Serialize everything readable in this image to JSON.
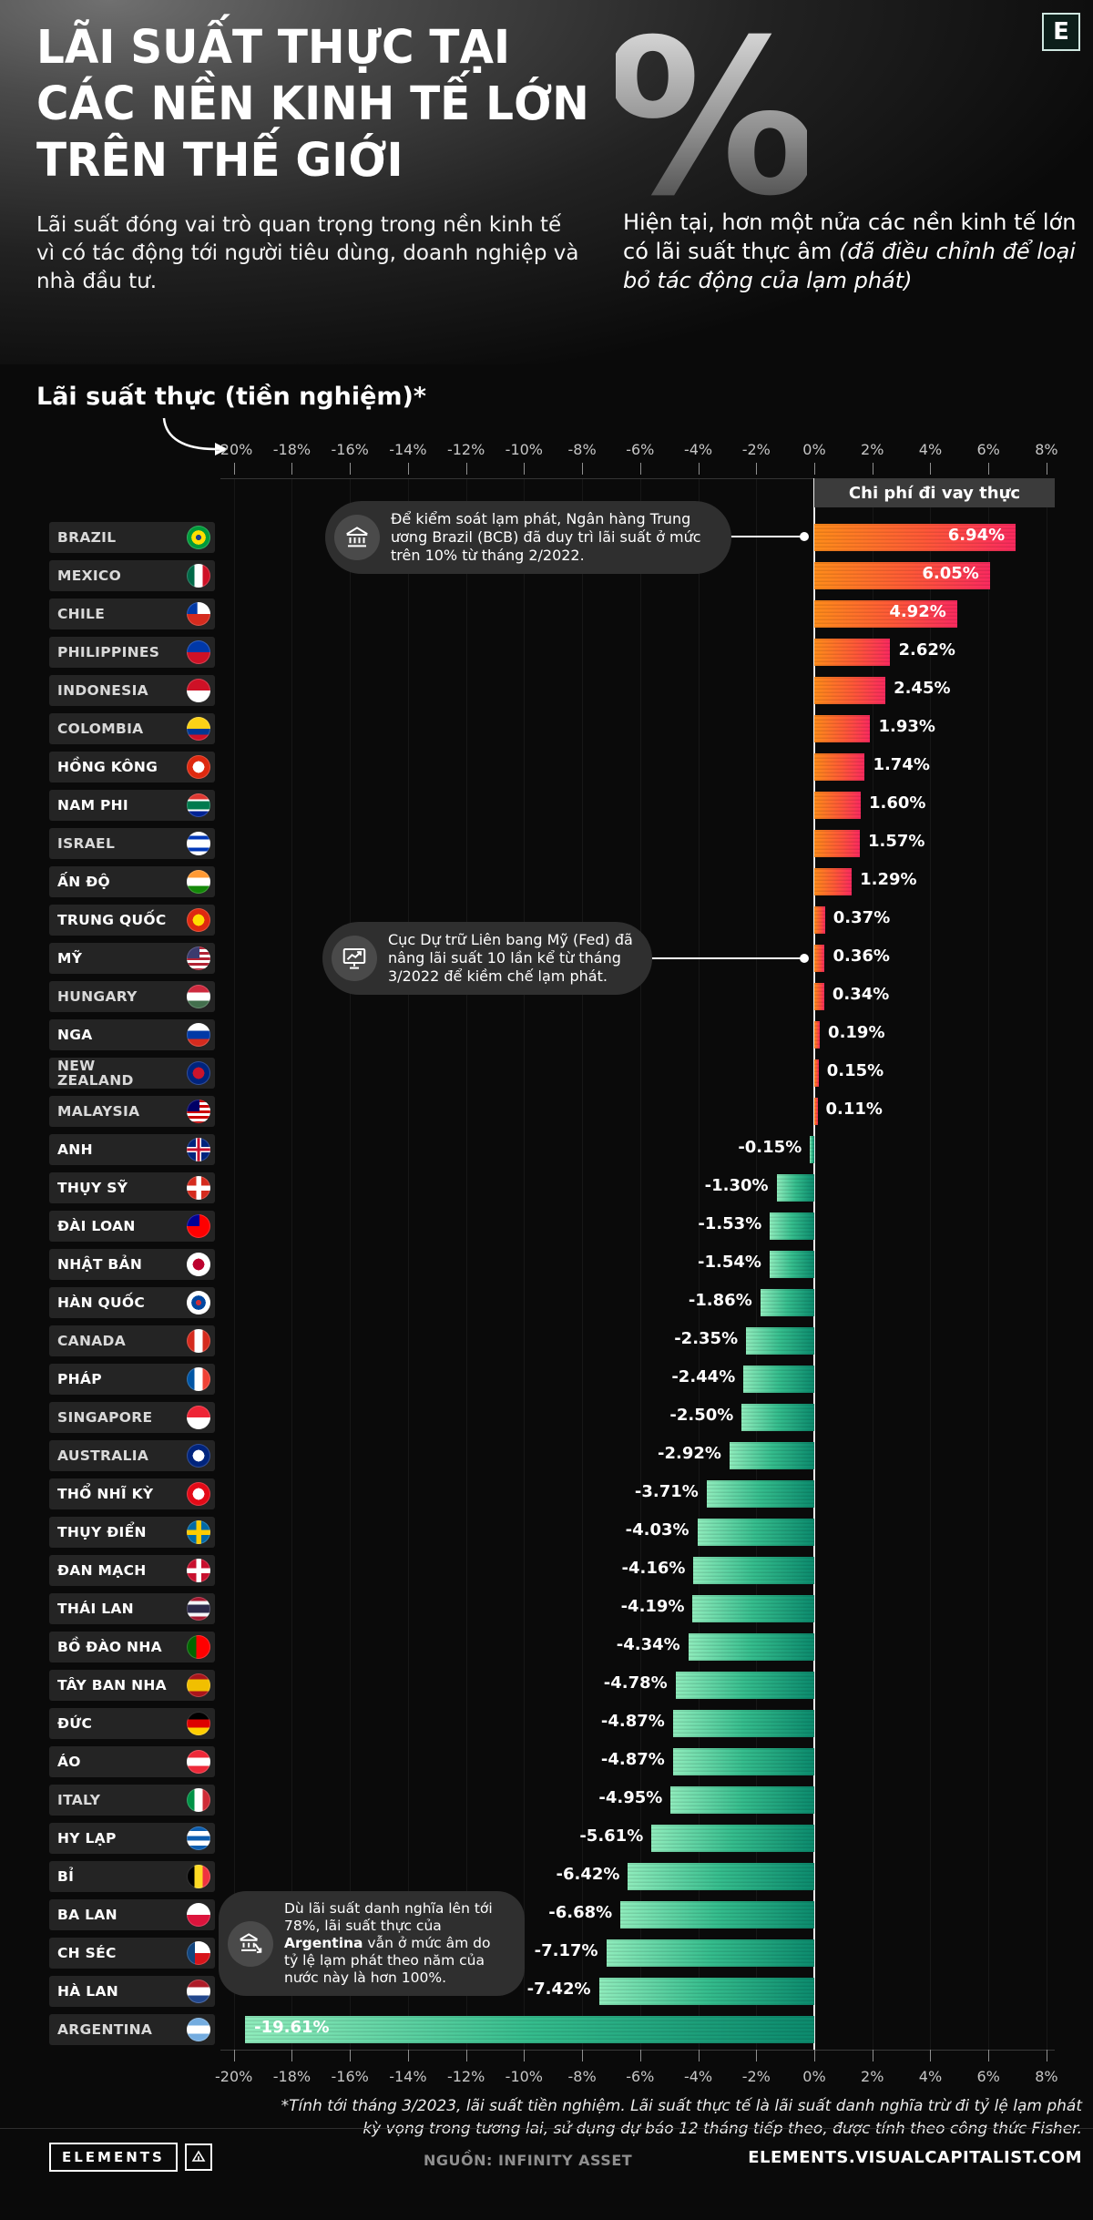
{
  "page": {
    "bg": "#0a0a0a",
    "accent_positive": "#ff5838",
    "accent_negative": "#2cb98b"
  },
  "logo": {
    "letter": "E"
  },
  "header": {
    "title_line1": "LÃI SUẤT THỰC TẠI",
    "title_line2": "CÁC NỀN KINH TẾ LỚN",
    "title_line3": "TRÊN THẾ GIỚI",
    "percent_glyph": "%",
    "intro_left": "Lãi suất đóng vai trò quan trọng trong nền kinh tế vì có tác động tới người tiêu dùng, doanh nghiệp và nhà đầu tư.",
    "intro_right_normal": "Hiện tại, hơn một nửa các nền kinh tế lớn có lãi suất thực âm ",
    "intro_right_italic": "(đã điều chỉnh để loại bỏ tác động của lạm phát)"
  },
  "chart": {
    "section_title": "Lãi suất thực (tiền nghiệm)*",
    "cost_label": "Chi phí đi vay thực",
    "axis_ticks": [
      "-20%",
      "-18%",
      "-16%",
      "-14%",
      "-12%",
      "-10%",
      "-8%",
      "-6%",
      "-4%",
      "-2%",
      "0%",
      "2%",
      "4%",
      "6%",
      "8%"
    ]
  },
  "chart_data": {
    "type": "bar",
    "orientation": "horizontal",
    "unit": "percent",
    "xlim": [
      -20,
      8
    ],
    "title": "Lãi suất thực (tiền nghiệm)*",
    "rows": [
      {
        "country": "BRAZIL",
        "value": 6.94,
        "label": "6.94%",
        "lp": "in",
        "em": false,
        "flag": {
          "t": "rings",
          "c": [
            "#1d3f8c",
            "#ffdf00",
            "#009b3a"
          ]
        }
      },
      {
        "country": "MEXICO",
        "value": 6.05,
        "label": "6.05%",
        "lp": "in",
        "em": false,
        "flag": {
          "t": "v",
          "c": [
            "#006847",
            "#ffffff",
            "#ce1126"
          ]
        }
      },
      {
        "country": "CHILE",
        "value": 4.92,
        "label": "4.92%",
        "lp": "in",
        "em": false,
        "flag": {
          "t": "chile",
          "c": [
            "#0039a6",
            "#ffffff",
            "#d52b1e"
          ]
        }
      },
      {
        "country": "PHILIPPINES",
        "value": 2.62,
        "label": "2.62%",
        "lp": "out",
        "em": false,
        "flag": {
          "t": "h",
          "c": [
            "#0038a8",
            "#ce1126"
          ]
        }
      },
      {
        "country": "INDONESIA",
        "value": 2.45,
        "label": "2.45%",
        "lp": "out",
        "em": false,
        "flag": {
          "t": "h",
          "c": [
            "#ce1126",
            "#ffffff"
          ]
        }
      },
      {
        "country": "COLOMBIA",
        "value": 1.93,
        "label": "1.93%",
        "lp": "out",
        "em": false,
        "flag": {
          "t": "h",
          "c": [
            "#fcd116",
            "#003893",
            "#ce1126"
          ],
          "w": [
            2,
            1,
            1
          ]
        }
      },
      {
        "country": "HỒNG KÔNG",
        "value": 1.74,
        "label": "1.74%",
        "lp": "out",
        "em": true,
        "flag": {
          "t": "dot",
          "c": [
            "#ffffff",
            "#de2910"
          ]
        }
      },
      {
        "country": "NAM PHI",
        "value": 1.6,
        "label": "1.60%",
        "lp": "out",
        "em": true,
        "flag": {
          "t": "h",
          "c": [
            "#de3831",
            "#ffffff",
            "#007a4d",
            "#ffffff",
            "#002395"
          ],
          "w": [
            3,
            1,
            4,
            1,
            3
          ]
        }
      },
      {
        "country": "ISRAEL",
        "value": 1.57,
        "label": "1.57%",
        "lp": "out",
        "em": false,
        "flag": {
          "t": "h",
          "c": [
            "#ffffff",
            "#0038b8",
            "#ffffff",
            "#0038b8",
            "#ffffff"
          ],
          "w": [
            1,
            1,
            2,
            1,
            1
          ]
        }
      },
      {
        "country": "ẤN ĐỘ",
        "value": 1.29,
        "label": "1.29%",
        "lp": "out",
        "em": true,
        "flag": {
          "t": "h",
          "c": [
            "#ff9933",
            "#ffffff",
            "#138808"
          ]
        }
      },
      {
        "country": "TRUNG QUỐC",
        "value": 0.37,
        "label": "0.37%",
        "lp": "out",
        "em": true,
        "flag": {
          "t": "dot",
          "c": [
            "#ffde00",
            "#de2910"
          ]
        }
      },
      {
        "country": "MỸ",
        "value": 0.36,
        "label": "0.36%",
        "lp": "out",
        "em": true,
        "flag": {
          "t": "usa",
          "c": [
            "#3c3b6e",
            "#b22234",
            "#ffffff"
          ]
        }
      },
      {
        "country": "HUNGARY",
        "value": 0.34,
        "label": "0.34%",
        "lp": "out",
        "em": false,
        "flag": {
          "t": "h",
          "c": [
            "#cd2a3e",
            "#ffffff",
            "#436f4d"
          ]
        }
      },
      {
        "country": "NGA",
        "value": 0.19,
        "label": "0.19%",
        "lp": "out",
        "em": true,
        "flag": {
          "t": "h",
          "c": [
            "#ffffff",
            "#0039a6",
            "#d52b1e"
          ]
        }
      },
      {
        "country": "NEW\nZEALAND",
        "value": 0.15,
        "label": "0.15%",
        "lp": "out",
        "em": false,
        "flag": {
          "t": "dot",
          "c": [
            "#cc142b",
            "#00247d"
          ]
        }
      },
      {
        "country": "MALAYSIA",
        "value": 0.11,
        "label": "0.11%",
        "lp": "out",
        "em": false,
        "flag": {
          "t": "usa",
          "c": [
            "#010066",
            "#cc0001",
            "#ffffff"
          ]
        }
      },
      {
        "country": "ANH",
        "value": -0.15,
        "label": "-0.15%",
        "lp": "out",
        "em": true,
        "flag": {
          "t": "uk",
          "c": [
            "#00247d",
            "#ffffff",
            "#c8102e"
          ]
        }
      },
      {
        "country": "THỤY SỸ",
        "value": -1.3,
        "label": "-1.30%",
        "lp": "out",
        "em": true,
        "flag": {
          "t": "cross",
          "c": [
            "#ffffff",
            "#d52b1e"
          ]
        }
      },
      {
        "country": "ĐÀI LOAN",
        "value": -1.53,
        "label": "-1.53%",
        "lp": "out",
        "em": true,
        "flag": {
          "t": "usa",
          "c": [
            "#000095",
            "#fe0000",
            "#fe0000"
          ]
        }
      },
      {
        "country": "NHẬT BẢN",
        "value": -1.54,
        "label": "-1.54%",
        "lp": "out",
        "em": true,
        "flag": {
          "t": "dot",
          "c": [
            "#bc002d",
            "#ffffff"
          ]
        }
      },
      {
        "country": "HÀN QUỐC",
        "value": -1.86,
        "label": "-1.86%",
        "lp": "out",
        "em": true,
        "flag": {
          "t": "rings",
          "c": [
            "#cd2e3a",
            "#0047a0",
            "#ffffff"
          ]
        }
      },
      {
        "country": "CANADA",
        "value": -2.35,
        "label": "-2.35%",
        "lp": "out",
        "em": false,
        "flag": {
          "t": "v",
          "c": [
            "#d52b1e",
            "#ffffff",
            "#d52b1e"
          ]
        }
      },
      {
        "country": "PHÁP",
        "value": -2.44,
        "label": "-2.44%",
        "lp": "out",
        "em": true,
        "flag": {
          "t": "v",
          "c": [
            "#0055a4",
            "#ffffff",
            "#ef4135"
          ]
        }
      },
      {
        "country": "SINGAPORE",
        "value": -2.5,
        "label": "-2.50%",
        "lp": "out",
        "em": false,
        "flag": {
          "t": "h",
          "c": [
            "#ee2536",
            "#ffffff"
          ]
        }
      },
      {
        "country": "AUSTRALIA",
        "value": -2.92,
        "label": "-2.92%",
        "lp": "out",
        "em": false,
        "flag": {
          "t": "dot",
          "c": [
            "#ffffff",
            "#00247d"
          ]
        }
      },
      {
        "country": "THỔ NHĨ KỲ",
        "value": -3.71,
        "label": "-3.71%",
        "lp": "out",
        "em": true,
        "flag": {
          "t": "dot",
          "c": [
            "#ffffff",
            "#e30a17"
          ]
        }
      },
      {
        "country": "THỤY ĐIỂN",
        "value": -4.03,
        "label": "-4.03%",
        "lp": "out",
        "em": true,
        "flag": {
          "t": "cross",
          "c": [
            "#fecc00",
            "#006aa7"
          ]
        }
      },
      {
        "country": "ĐAN MẠCH",
        "value": -4.16,
        "label": "-4.16%",
        "lp": "out",
        "em": true,
        "flag": {
          "t": "cross",
          "c": [
            "#ffffff",
            "#c8102e"
          ]
        }
      },
      {
        "country": "THÁI LAN",
        "value": -4.19,
        "label": "-4.19%",
        "lp": "out",
        "em": true,
        "flag": {
          "t": "h",
          "c": [
            "#a51931",
            "#f4f5f8",
            "#2d2a4a",
            "#f4f5f8",
            "#a51931"
          ],
          "w": [
            1,
            1,
            2,
            1,
            1
          ]
        }
      },
      {
        "country": "BỒ ĐÀO NHA",
        "value": -4.34,
        "label": "-4.34%",
        "lp": "out",
        "em": true,
        "flag": {
          "t": "v",
          "c": [
            "#006600",
            "#ff0000"
          ],
          "w": [
            2,
            3
          ]
        }
      },
      {
        "country": "TÂY BAN NHA",
        "value": -4.78,
        "label": "-4.78%",
        "lp": "out",
        "em": true,
        "flag": {
          "t": "h",
          "c": [
            "#aa151b",
            "#f1bf00",
            "#aa151b"
          ],
          "w": [
            1,
            2,
            1
          ]
        }
      },
      {
        "country": "ĐỨC",
        "value": -4.87,
        "label": "-4.87%",
        "lp": "out",
        "em": true,
        "flag": {
          "t": "h",
          "c": [
            "#000000",
            "#dd0000",
            "#ffce00"
          ]
        }
      },
      {
        "country": "ÁO",
        "value": -4.87,
        "label": "-4.87%",
        "lp": "out",
        "em": true,
        "flag": {
          "t": "h",
          "c": [
            "#ed2939",
            "#ffffff",
            "#ed2939"
          ]
        }
      },
      {
        "country": "ITALY",
        "value": -4.95,
        "label": "-4.95%",
        "lp": "out",
        "em": false,
        "flag": {
          "t": "v",
          "c": [
            "#009246",
            "#ffffff",
            "#ce2b37"
          ]
        }
      },
      {
        "country": "HY LẠP",
        "value": -5.61,
        "label": "-5.61%",
        "lp": "out",
        "em": true,
        "flag": {
          "t": "h",
          "c": [
            "#0d5eaf",
            "#ffffff",
            "#0d5eaf",
            "#ffffff",
            "#0d5eaf"
          ]
        }
      },
      {
        "country": "BỈ",
        "value": -6.42,
        "label": "-6.42%",
        "lp": "out",
        "em": true,
        "flag": {
          "t": "v",
          "c": [
            "#000000",
            "#fdda24",
            "#ef3340"
          ]
        }
      },
      {
        "country": "BA LAN",
        "value": -6.68,
        "label": "-6.68%",
        "lp": "out",
        "em": true,
        "flag": {
          "t": "h",
          "c": [
            "#ffffff",
            "#dc143c"
          ]
        }
      },
      {
        "country": "CH SÉC",
        "value": -7.17,
        "label": "-7.17%",
        "lp": "out",
        "em": true,
        "flag": {
          "t": "leftband",
          "c": [
            "#11457e",
            "#ffffff",
            "#d7141a"
          ]
        }
      },
      {
        "country": "HÀ LAN",
        "value": -7.42,
        "label": "-7.42%",
        "lp": "out",
        "em": true,
        "flag": {
          "t": "h",
          "c": [
            "#ae1c28",
            "#ffffff",
            "#21468b"
          ]
        }
      },
      {
        "country": "ARGENTINA",
        "value": -19.61,
        "label": "-19.61%",
        "lp": "in",
        "em": false,
        "flag": {
          "t": "h",
          "c": [
            "#74acdf",
            "#ffffff",
            "#74acdf"
          ]
        }
      }
    ]
  },
  "annotations": [
    {
      "icon": "central-bank-icon",
      "text": "Để kiểm soát lạm phát, Ngân hàng Trung ương Brazil (BCB) đã duy trì lãi suất ở mức trên 10% từ tháng 2/2022."
    },
    {
      "icon": "fed-board-icon",
      "text": "Cục Dự trữ Liên bang Mỹ (Fed) đã nâng lãi suất 10 lần kể từ tháng 3/2022 để kiềm chế lạm phát."
    },
    {
      "icon": "bank-decline-icon",
      "text_before": "Dù lãi suất danh nghĩa lên tới 78%, lãi suất thực của ",
      "text_bold": "Argentina",
      "text_after": " vẫn ở mức âm do tỷ lệ lạm phát theo năm của nước này là hơn 100%."
    }
  ],
  "footnote": "*Tính tới tháng 3/2023, lãi suất tiền nghiệm. Lãi suất thực tế là lãi suất danh nghĩa trừ đi tỷ lệ lạm phát kỳ vọng trong tương lai, sử dụng dự báo 12 tháng tiếp theo, được tính theo công thức Fisher.",
  "footer": {
    "brand": "ELEMENTS",
    "source": "NGUỒN: INFINITY ASSET",
    "site": "ELEMENTS.VISUALCAPITALIST.COM"
  }
}
